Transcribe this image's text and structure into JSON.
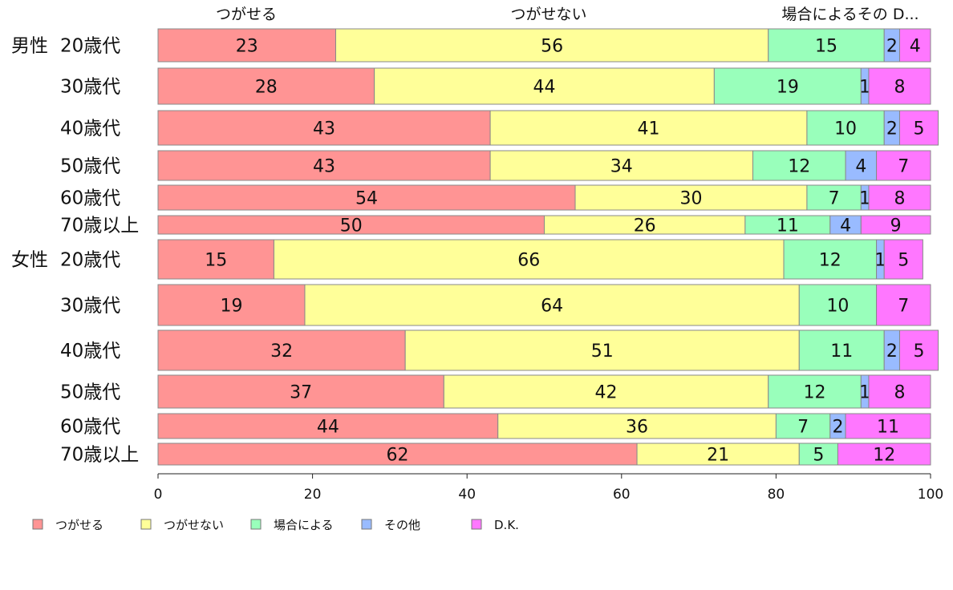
{
  "chart_data": {
    "type": "bar",
    "orientation": "horizontal",
    "stacked": true,
    "xlim": [
      0,
      100
    ],
    "xticks": [
      "0",
      "20",
      "40",
      "60",
      "80",
      "100"
    ],
    "headers": [
      "つがせる",
      "つがせない",
      "場合によるその D..."
    ],
    "series": [
      {
        "name": "つがせる",
        "color": "#FF9494"
      },
      {
        "name": "つがせない",
        "color": "#FFFF99"
      },
      {
        "name": "場合による",
        "color": "#99FFBB"
      },
      {
        "name": "その他",
        "color": "#99BBFF"
      },
      {
        "name": "D.K.",
        "color": "#FF77FF"
      }
    ],
    "rows": [
      {
        "group": "男性",
        "age": "20歳代",
        "values": [
          23,
          56,
          15,
          2,
          4
        ]
      },
      {
        "group": "",
        "age": "30歳代",
        "values": [
          28,
          44,
          19,
          1,
          8
        ]
      },
      {
        "group": "",
        "age": "40歳代",
        "values": [
          43,
          41,
          10,
          2,
          5
        ]
      },
      {
        "group": "",
        "age": "50歳代",
        "values": [
          43,
          34,
          12,
          4,
          7
        ]
      },
      {
        "group": "",
        "age": "60歳代",
        "values": [
          54,
          30,
          7,
          1,
          8
        ]
      },
      {
        "group": "",
        "age": "70歳以上",
        "values": [
          50,
          26,
          11,
          4,
          9
        ]
      },
      {
        "group": "女性",
        "age": "20歳代",
        "values": [
          15,
          66,
          12,
          1,
          5
        ]
      },
      {
        "group": "",
        "age": "30歳代",
        "values": [
          19,
          64,
          10,
          0,
          7
        ]
      },
      {
        "group": "",
        "age": "40歳代",
        "values": [
          32,
          51,
          11,
          2,
          5
        ]
      },
      {
        "group": "",
        "age": "50歳代",
        "values": [
          37,
          42,
          12,
          1,
          8
        ]
      },
      {
        "group": "",
        "age": "60歳代",
        "values": [
          44,
          36,
          7,
          2,
          11
        ]
      },
      {
        "group": "",
        "age": "70歳以上",
        "values": [
          62,
          21,
          5,
          0,
          12
        ]
      }
    ],
    "grid": false,
    "legend": "bottom-left"
  }
}
